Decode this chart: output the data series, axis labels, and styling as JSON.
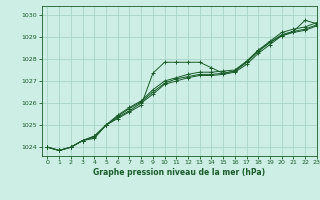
{
  "bg_color": "#cceee4",
  "grid_color": "#aad4c8",
  "line_color": "#1a5c2a",
  "title": "Graphe pression niveau de la mer (hPa)",
  "xlim": [
    -0.5,
    23
  ],
  "ylim": [
    1023.6,
    1030.4
  ],
  "yticks": [
    1024,
    1025,
    1026,
    1027,
    1028,
    1029,
    1030
  ],
  "xticks": [
    0,
    1,
    2,
    3,
    4,
    5,
    6,
    7,
    8,
    9,
    10,
    11,
    12,
    13,
    14,
    15,
    16,
    17,
    18,
    19,
    20,
    21,
    22,
    23
  ],
  "series": [
    [
      1024.0,
      1023.85,
      1024.0,
      1024.3,
      1024.4,
      1025.0,
      1025.3,
      1025.6,
      1025.9,
      1027.35,
      1027.85,
      1027.85,
      1027.85,
      1027.85,
      1027.6,
      1027.35,
      1027.45,
      1027.85,
      1028.35,
      1028.75,
      1029.05,
      1029.25,
      1029.75,
      1029.6
    ],
    [
      1024.0,
      1023.85,
      1024.0,
      1024.3,
      1024.5,
      1025.0,
      1025.4,
      1025.75,
      1026.05,
      1026.5,
      1026.9,
      1027.1,
      1027.2,
      1027.3,
      1027.3,
      1027.35,
      1027.45,
      1027.85,
      1028.35,
      1028.75,
      1029.1,
      1029.25,
      1029.35,
      1029.55
    ],
    [
      1024.0,
      1023.85,
      1024.0,
      1024.3,
      1024.5,
      1025.0,
      1025.45,
      1025.8,
      1026.1,
      1026.6,
      1027.0,
      1027.15,
      1027.3,
      1027.4,
      1027.4,
      1027.45,
      1027.5,
      1027.9,
      1028.4,
      1028.8,
      1029.2,
      1029.35,
      1029.45,
      1029.65
    ],
    [
      1024.0,
      1023.85,
      1024.0,
      1024.3,
      1024.45,
      1025.0,
      1025.35,
      1025.65,
      1026.0,
      1026.4,
      1026.85,
      1027.0,
      1027.15,
      1027.25,
      1027.25,
      1027.3,
      1027.4,
      1027.75,
      1028.25,
      1028.65,
      1029.05,
      1029.2,
      1029.3,
      1029.5
    ]
  ]
}
